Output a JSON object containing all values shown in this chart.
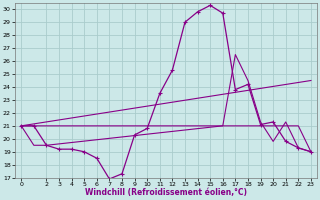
{
  "xlabel": "Windchill (Refroidissement éolien,°C)",
  "bg_color": "#cce8e8",
  "grid_color": "#aacccc",
  "line_color": "#880088",
  "xlim_min": -0.5,
  "xlim_max": 23.5,
  "ylim_min": 17,
  "ylim_max": 30.5,
  "xticks": [
    0,
    2,
    3,
    4,
    5,
    6,
    7,
    8,
    9,
    10,
    11,
    12,
    13,
    14,
    15,
    16,
    17,
    18,
    19,
    20,
    21,
    22,
    23
  ],
  "yticks": [
    17,
    18,
    19,
    20,
    21,
    22,
    23,
    24,
    25,
    26,
    27,
    28,
    29,
    30
  ],
  "series1_x": [
    0,
    1,
    2,
    3,
    4,
    5,
    6,
    7,
    8,
    9,
    10,
    11,
    12,
    13,
    14,
    15,
    16,
    17,
    18,
    19,
    20,
    21,
    22,
    23
  ],
  "series1_y": [
    21.0,
    21.0,
    19.5,
    19.2,
    19.2,
    19.0,
    18.5,
    16.9,
    17.3,
    20.3,
    20.8,
    23.5,
    25.3,
    29.0,
    29.8,
    30.3,
    29.7,
    23.8,
    24.2,
    21.1,
    21.3,
    19.8,
    19.3,
    19.0
  ],
  "series2_x": [
    0,
    23
  ],
  "series2_y": [
    21.0,
    24.5
  ],
  "series3_x": [
    0,
    15,
    16,
    17,
    18,
    19,
    20,
    21,
    22,
    23
  ],
  "series3_y": [
    21.0,
    21.0,
    21.0,
    21.0,
    21.0,
    21.0,
    21.0,
    21.0,
    21.0,
    19.0
  ],
  "series4_x": [
    0,
    1,
    2,
    16,
    17,
    18,
    19,
    20,
    21,
    22,
    23
  ],
  "series4_y": [
    21.0,
    19.5,
    19.5,
    21.0,
    26.5,
    24.5,
    21.3,
    19.8,
    21.3,
    19.3,
    19.0
  ]
}
